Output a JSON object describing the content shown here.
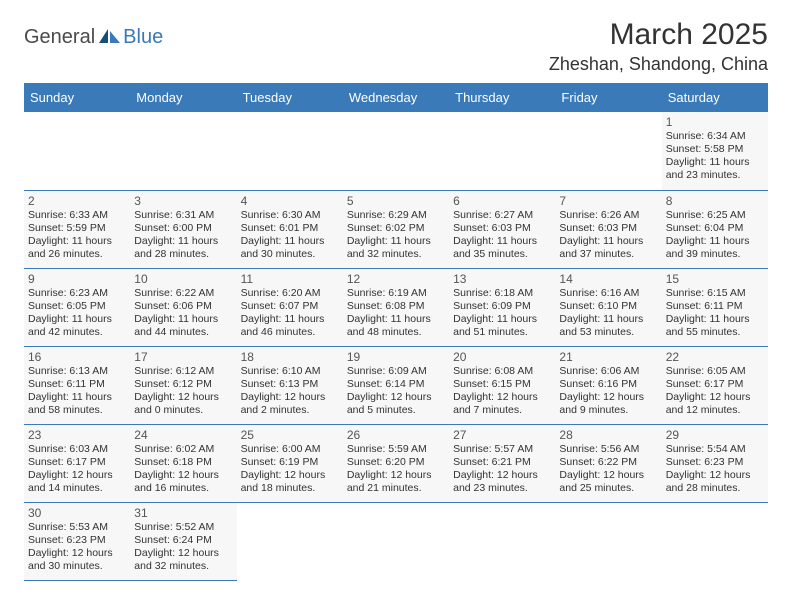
{
  "logo": {
    "text1": "General",
    "text2": "Blue"
  },
  "title": "March 2025",
  "location": "Zheshan, Shandong, China",
  "colors": {
    "header_bg": "#3a7ab8",
    "cell_bg": "#f7f7f7",
    "border": "#3a7ab8"
  },
  "dayHeaders": [
    "Sunday",
    "Monday",
    "Tuesday",
    "Wednesday",
    "Thursday",
    "Friday",
    "Saturday"
  ],
  "weeks": [
    [
      null,
      null,
      null,
      null,
      null,
      null,
      {
        "n": "1",
        "sr": "Sunrise: 6:34 AM",
        "ss": "Sunset: 5:58 PM",
        "dl": "Daylight: 11 hours and 23 minutes."
      }
    ],
    [
      {
        "n": "2",
        "sr": "Sunrise: 6:33 AM",
        "ss": "Sunset: 5:59 PM",
        "dl": "Daylight: 11 hours and 26 minutes."
      },
      {
        "n": "3",
        "sr": "Sunrise: 6:31 AM",
        "ss": "Sunset: 6:00 PM",
        "dl": "Daylight: 11 hours and 28 minutes."
      },
      {
        "n": "4",
        "sr": "Sunrise: 6:30 AM",
        "ss": "Sunset: 6:01 PM",
        "dl": "Daylight: 11 hours and 30 minutes."
      },
      {
        "n": "5",
        "sr": "Sunrise: 6:29 AM",
        "ss": "Sunset: 6:02 PM",
        "dl": "Daylight: 11 hours and 32 minutes."
      },
      {
        "n": "6",
        "sr": "Sunrise: 6:27 AM",
        "ss": "Sunset: 6:03 PM",
        "dl": "Daylight: 11 hours and 35 minutes."
      },
      {
        "n": "7",
        "sr": "Sunrise: 6:26 AM",
        "ss": "Sunset: 6:03 PM",
        "dl": "Daylight: 11 hours and 37 minutes."
      },
      {
        "n": "8",
        "sr": "Sunrise: 6:25 AM",
        "ss": "Sunset: 6:04 PM",
        "dl": "Daylight: 11 hours and 39 minutes."
      }
    ],
    [
      {
        "n": "9",
        "sr": "Sunrise: 6:23 AM",
        "ss": "Sunset: 6:05 PM",
        "dl": "Daylight: 11 hours and 42 minutes."
      },
      {
        "n": "10",
        "sr": "Sunrise: 6:22 AM",
        "ss": "Sunset: 6:06 PM",
        "dl": "Daylight: 11 hours and 44 minutes."
      },
      {
        "n": "11",
        "sr": "Sunrise: 6:20 AM",
        "ss": "Sunset: 6:07 PM",
        "dl": "Daylight: 11 hours and 46 minutes."
      },
      {
        "n": "12",
        "sr": "Sunrise: 6:19 AM",
        "ss": "Sunset: 6:08 PM",
        "dl": "Daylight: 11 hours and 48 minutes."
      },
      {
        "n": "13",
        "sr": "Sunrise: 6:18 AM",
        "ss": "Sunset: 6:09 PM",
        "dl": "Daylight: 11 hours and 51 minutes."
      },
      {
        "n": "14",
        "sr": "Sunrise: 6:16 AM",
        "ss": "Sunset: 6:10 PM",
        "dl": "Daylight: 11 hours and 53 minutes."
      },
      {
        "n": "15",
        "sr": "Sunrise: 6:15 AM",
        "ss": "Sunset: 6:11 PM",
        "dl": "Daylight: 11 hours and 55 minutes."
      }
    ],
    [
      {
        "n": "16",
        "sr": "Sunrise: 6:13 AM",
        "ss": "Sunset: 6:11 PM",
        "dl": "Daylight: 11 hours and 58 minutes."
      },
      {
        "n": "17",
        "sr": "Sunrise: 6:12 AM",
        "ss": "Sunset: 6:12 PM",
        "dl": "Daylight: 12 hours and 0 minutes."
      },
      {
        "n": "18",
        "sr": "Sunrise: 6:10 AM",
        "ss": "Sunset: 6:13 PM",
        "dl": "Daylight: 12 hours and 2 minutes."
      },
      {
        "n": "19",
        "sr": "Sunrise: 6:09 AM",
        "ss": "Sunset: 6:14 PM",
        "dl": "Daylight: 12 hours and 5 minutes."
      },
      {
        "n": "20",
        "sr": "Sunrise: 6:08 AM",
        "ss": "Sunset: 6:15 PM",
        "dl": "Daylight: 12 hours and 7 minutes."
      },
      {
        "n": "21",
        "sr": "Sunrise: 6:06 AM",
        "ss": "Sunset: 6:16 PM",
        "dl": "Daylight: 12 hours and 9 minutes."
      },
      {
        "n": "22",
        "sr": "Sunrise: 6:05 AM",
        "ss": "Sunset: 6:17 PM",
        "dl": "Daylight: 12 hours and 12 minutes."
      }
    ],
    [
      {
        "n": "23",
        "sr": "Sunrise: 6:03 AM",
        "ss": "Sunset: 6:17 PM",
        "dl": "Daylight: 12 hours and 14 minutes."
      },
      {
        "n": "24",
        "sr": "Sunrise: 6:02 AM",
        "ss": "Sunset: 6:18 PM",
        "dl": "Daylight: 12 hours and 16 minutes."
      },
      {
        "n": "25",
        "sr": "Sunrise: 6:00 AM",
        "ss": "Sunset: 6:19 PM",
        "dl": "Daylight: 12 hours and 18 minutes."
      },
      {
        "n": "26",
        "sr": "Sunrise: 5:59 AM",
        "ss": "Sunset: 6:20 PM",
        "dl": "Daylight: 12 hours and 21 minutes."
      },
      {
        "n": "27",
        "sr": "Sunrise: 5:57 AM",
        "ss": "Sunset: 6:21 PM",
        "dl": "Daylight: 12 hours and 23 minutes."
      },
      {
        "n": "28",
        "sr": "Sunrise: 5:56 AM",
        "ss": "Sunset: 6:22 PM",
        "dl": "Daylight: 12 hours and 25 minutes."
      },
      {
        "n": "29",
        "sr": "Sunrise: 5:54 AM",
        "ss": "Sunset: 6:23 PM",
        "dl": "Daylight: 12 hours and 28 minutes."
      }
    ],
    [
      {
        "n": "30",
        "sr": "Sunrise: 5:53 AM",
        "ss": "Sunset: 6:23 PM",
        "dl": "Daylight: 12 hours and 30 minutes."
      },
      {
        "n": "31",
        "sr": "Sunrise: 5:52 AM",
        "ss": "Sunset: 6:24 PM",
        "dl": "Daylight: 12 hours and 32 minutes."
      },
      null,
      null,
      null,
      null,
      null
    ]
  ]
}
